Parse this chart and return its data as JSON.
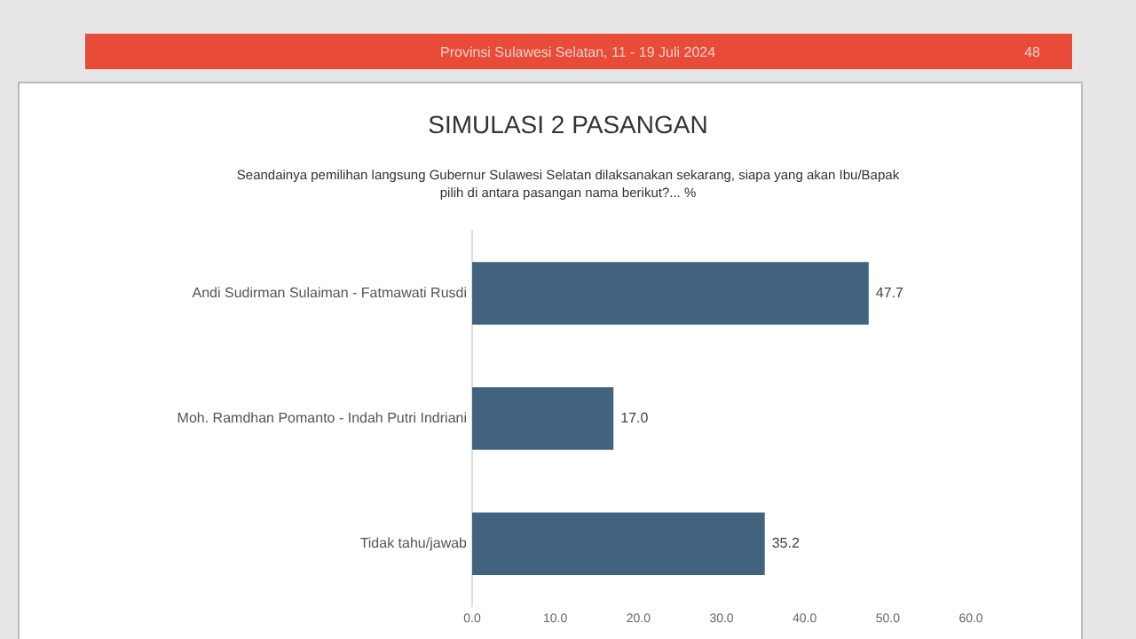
{
  "chart_data": {
    "type": "bar",
    "orientation": "horizontal",
    "title": "SIMULASI 2 PASANGAN",
    "subtitle": "Seandainya pemilihan langsung Gubernur Sulawesi Selatan dilaksanakan sekarang, siapa yang akan Ibu/Bapak pilih di antara pasangan nama berikut?... %",
    "annotations": [
      "Provinsi Sulawesi Selatan, 11 - 19 Juli 2024",
      "48"
    ],
    "categories": [
      "Andi Sudirman Sulaiman - Fatmawati Rusdi",
      "Moh. Ramdhan Pomanto - Indah Putri Indriani",
      "Tidak tahu/jawab"
    ],
    "values": [
      47.7,
      17.0,
      35.2
    ],
    "value_labels": [
      "47.7",
      "17.0",
      "35.2"
    ],
    "color": "#42637f",
    "xlim": [
      0,
      60
    ],
    "xticks": [
      {
        "value": 0,
        "label": "0.0"
      },
      {
        "value": 10,
        "label": "10.0"
      },
      {
        "value": 20,
        "label": "20.0"
      },
      {
        "value": 30,
        "label": "30.0"
      },
      {
        "value": 40,
        "label": "40.0"
      },
      {
        "value": 50,
        "label": "50.0"
      },
      {
        "value": 60,
        "label": "60.0"
      }
    ],
    "grid": false,
    "legend": false
  }
}
